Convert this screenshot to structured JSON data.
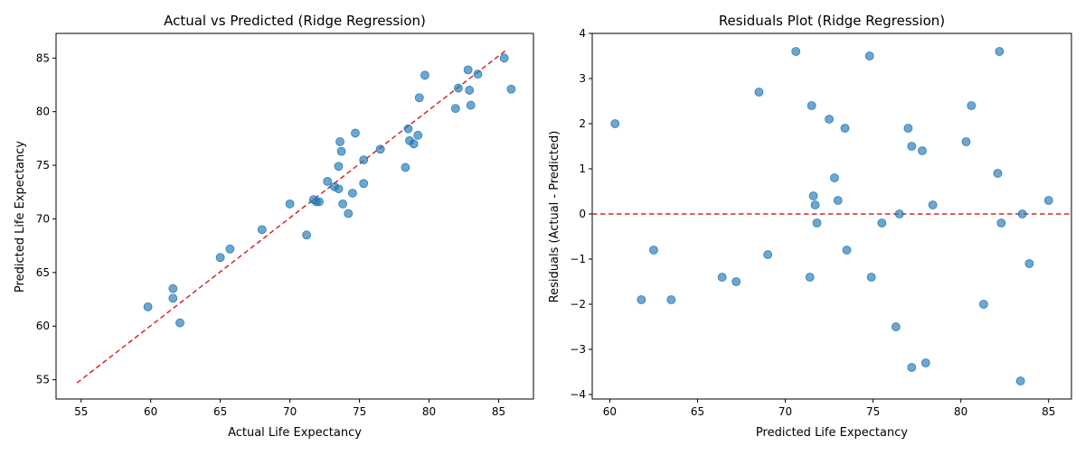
{
  "chart_data": [
    {
      "type": "scatter",
      "title": "Actual vs Predicted (Ridge Regression)",
      "xlabel": "Actual Life Expectancy",
      "ylabel": "Predicted Life Expectancy",
      "xlim": [
        53.2,
        87.5
      ],
      "ylim": [
        53.2,
        87.3
      ],
      "xticks": [
        55,
        60,
        65,
        70,
        75,
        80,
        85
      ],
      "yticks": [
        55,
        60,
        65,
        70,
        75,
        80,
        85
      ],
      "point_color": "#1f77b4",
      "reference_line": {
        "from": [
          54.7,
          54.7
        ],
        "to": [
          85.5,
          85.7
        ],
        "color": "#d62728",
        "style": "dashed"
      },
      "points": [
        [
          59.8,
          61.8
        ],
        [
          61.6,
          63.5
        ],
        [
          61.6,
          62.6
        ],
        [
          62.1,
          60.3
        ],
        [
          65.0,
          66.4
        ],
        [
          65.7,
          67.2
        ],
        [
          68.0,
          69.0
        ],
        [
          70.0,
          71.4
        ],
        [
          71.2,
          68.5
        ],
        [
          71.7,
          71.8
        ],
        [
          71.9,
          71.6
        ],
        [
          72.1,
          71.6
        ],
        [
          72.7,
          73.5
        ],
        [
          73.2,
          73.0
        ],
        [
          73.5,
          74.9
        ],
        [
          73.5,
          72.8
        ],
        [
          73.6,
          77.2
        ],
        [
          73.7,
          76.3
        ],
        [
          73.8,
          71.4
        ],
        [
          74.2,
          70.5
        ],
        [
          74.5,
          72.4
        ],
        [
          74.7,
          78.0
        ],
        [
          75.3,
          73.3
        ],
        [
          75.3,
          75.5
        ],
        [
          76.5,
          76.5
        ],
        [
          78.3,
          74.8
        ],
        [
          78.5,
          78.4
        ],
        [
          78.6,
          77.3
        ],
        [
          78.9,
          77.0
        ],
        [
          79.2,
          77.8
        ],
        [
          79.3,
          81.3
        ],
        [
          79.7,
          83.4
        ],
        [
          81.9,
          80.3
        ],
        [
          82.1,
          82.2
        ],
        [
          82.8,
          83.9
        ],
        [
          82.9,
          82.0
        ],
        [
          83.0,
          80.6
        ],
        [
          83.5,
          83.5
        ],
        [
          85.4,
          85.0
        ],
        [
          85.9,
          82.1
        ]
      ]
    },
    {
      "type": "scatter",
      "title": "Residuals Plot (Ridge Regression)",
      "xlabel": "Predicted Life Expectancy",
      "ylabel": "Residuals (Actual - Predicted)",
      "xlim": [
        59.0,
        86.3
      ],
      "ylim": [
        -4.1,
        4.0
      ],
      "xticks": [
        60,
        65,
        70,
        75,
        80,
        85
      ],
      "yticks": [
        -4,
        -3,
        -2,
        -1,
        0,
        1,
        2,
        3,
        4
      ],
      "point_color": "#1f77b4",
      "reference_line": {
        "y": 0,
        "color": "#d62728",
        "style": "dashed"
      },
      "points": [
        [
          60.3,
          2.0
        ],
        [
          61.8,
          -1.9
        ],
        [
          62.5,
          -0.8
        ],
        [
          63.5,
          -1.9
        ],
        [
          66.4,
          -1.4
        ],
        [
          67.2,
          -1.5
        ],
        [
          68.5,
          2.7
        ],
        [
          69.0,
          -0.9
        ],
        [
          70.6,
          3.6
        ],
        [
          71.4,
          -1.4
        ],
        [
          71.5,
          2.4
        ],
        [
          71.6,
          0.4
        ],
        [
          71.7,
          0.2
        ],
        [
          71.8,
          -0.2
        ],
        [
          72.5,
          2.1
        ],
        [
          72.8,
          0.8
        ],
        [
          73.0,
          0.3
        ],
        [
          73.4,
          1.9
        ],
        [
          73.5,
          -0.8
        ],
        [
          74.8,
          3.5
        ],
        [
          74.9,
          -1.4
        ],
        [
          75.5,
          -0.2
        ],
        [
          76.3,
          -2.5
        ],
        [
          76.5,
          0.0
        ],
        [
          77.0,
          1.9
        ],
        [
          77.2,
          1.5
        ],
        [
          77.2,
          -3.4
        ],
        [
          77.8,
          1.4
        ],
        [
          78.0,
          -3.3
        ],
        [
          78.4,
          0.2
        ],
        [
          80.3,
          1.6
        ],
        [
          80.6,
          2.4
        ],
        [
          81.3,
          -2.0
        ],
        [
          82.1,
          0.9
        ],
        [
          82.2,
          3.6
        ],
        [
          82.3,
          -0.2
        ],
        [
          83.4,
          -3.7
        ],
        [
          83.5,
          -0.0
        ],
        [
          83.9,
          -1.1
        ],
        [
          85.0,
          0.3
        ]
      ]
    }
  ]
}
